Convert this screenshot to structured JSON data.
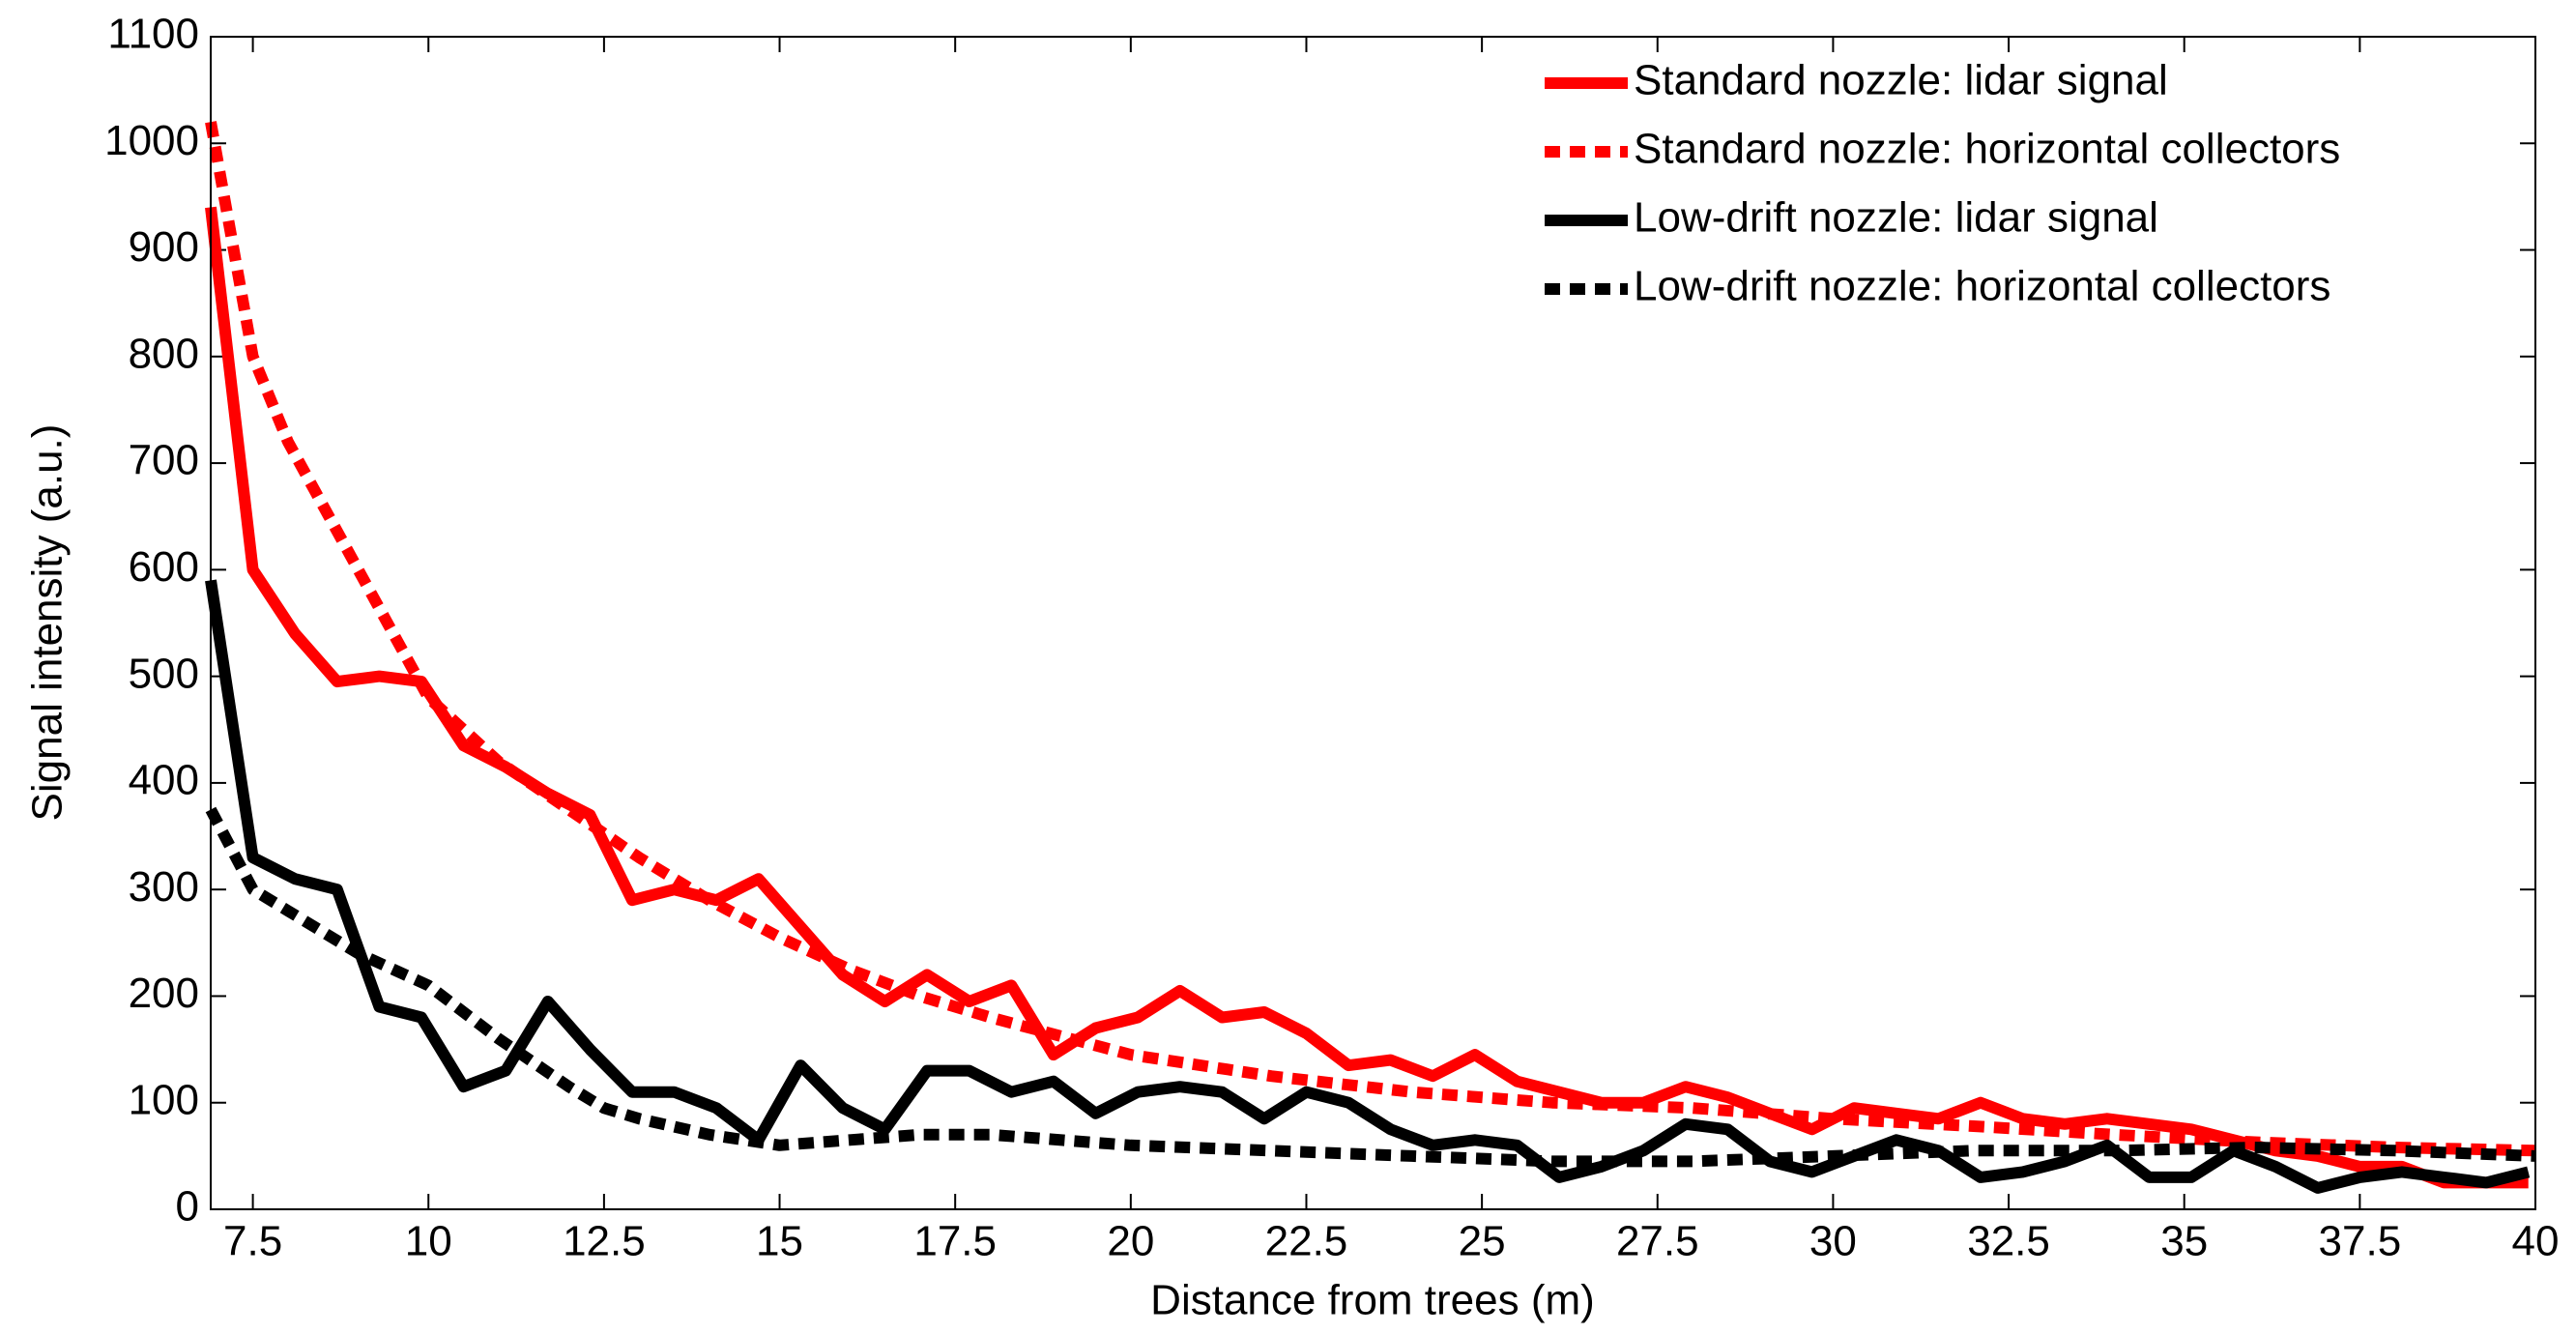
{
  "chart_data": {
    "type": "line",
    "xlabel": "Distance from trees (m)",
    "ylabel": "Signal intensity (a.u.)",
    "xlim": [
      6.9,
      40
    ],
    "ylim": [
      0,
      1100
    ],
    "xticks": [
      7.5,
      10,
      12.5,
      15,
      17.5,
      20,
      22.5,
      25,
      27.5,
      30,
      32.5,
      35,
      37.5,
      40
    ],
    "yticks": [
      0,
      100,
      200,
      300,
      400,
      500,
      600,
      700,
      800,
      900,
      1000,
      1100
    ],
    "legend": "upper right",
    "series": [
      {
        "name": "Standard nozzle: lidar signal",
        "color": "#ff0000",
        "linestyle": "solid",
        "x": [
          6.9,
          7.5,
          8.1,
          8.7,
          9.3,
          9.9,
          10.5,
          11.1,
          11.7,
          12.3,
          12.9,
          13.5,
          14.1,
          14.7,
          15.3,
          15.9,
          16.5,
          17.1,
          17.7,
          18.3,
          18.9,
          19.5,
          20.1,
          20.7,
          21.3,
          21.9,
          22.5,
          23.1,
          23.7,
          24.3,
          24.9,
          25.5,
          26.1,
          26.7,
          27.3,
          27.9,
          28.5,
          29.1,
          29.7,
          30.3,
          30.9,
          31.5,
          32.1,
          32.7,
          33.3,
          33.9,
          34.5,
          35.1,
          35.7,
          36.3,
          36.9,
          37.5,
          38.1,
          38.7,
          39.3,
          39.9
        ],
        "values": [
          940,
          600,
          540,
          495,
          500,
          495,
          435,
          415,
          390,
          370,
          290,
          300,
          290,
          310,
          265,
          220,
          195,
          220,
          195,
          210,
          145,
          170,
          180,
          205,
          180,
          185,
          165,
          135,
          140,
          125,
          145,
          120,
          110,
          100,
          100,
          115,
          105,
          90,
          75,
          95,
          90,
          85,
          100,
          85,
          80,
          85,
          80,
          75,
          65,
          55,
          50,
          40,
          40,
          25,
          25,
          25
        ]
      },
      {
        "name": "Standard nozzle: horizontal collectors",
        "color": "#ff0000",
        "linestyle": "dashed",
        "x": [
          6.9,
          7.5,
          8,
          9,
          10,
          11,
          12,
          13,
          14,
          15,
          16,
          17,
          18,
          20,
          22,
          24,
          26,
          28,
          30,
          32,
          34,
          36,
          38,
          40
        ],
        "values": [
          1020,
          800,
          720,
          600,
          480,
          420,
          375,
          330,
          290,
          255,
          225,
          200,
          180,
          145,
          125,
          110,
          100,
          95,
          85,
          78,
          70,
          63,
          58,
          55
        ]
      },
      {
        "name": "Low-drift nozzle: lidar signal",
        "color": "#000000",
        "linestyle": "solid",
        "x": [
          6.9,
          7.5,
          8.1,
          8.7,
          9.3,
          9.9,
          10.5,
          11.1,
          11.7,
          12.3,
          12.9,
          13.5,
          14.1,
          14.7,
          15.3,
          15.9,
          16.5,
          17.1,
          17.7,
          18.3,
          18.9,
          19.5,
          20.1,
          20.7,
          21.3,
          21.9,
          22.5,
          23.1,
          23.7,
          24.3,
          24.9,
          25.5,
          26.1,
          26.7,
          27.3,
          27.9,
          28.5,
          29.1,
          29.7,
          30.3,
          30.9,
          31.5,
          32.1,
          32.7,
          33.3,
          33.9,
          34.5,
          35.1,
          35.7,
          36.3,
          36.9,
          37.5,
          38.1,
          38.7,
          39.3,
          39.9
        ],
        "values": [
          590,
          330,
          310,
          300,
          190,
          180,
          115,
          130,
          195,
          150,
          110,
          110,
          95,
          65,
          135,
          95,
          75,
          130,
          130,
          110,
          120,
          90,
          110,
          115,
          110,
          85,
          110,
          100,
          75,
          60,
          65,
          60,
          30,
          40,
          55,
          80,
          75,
          45,
          35,
          50,
          65,
          55,
          30,
          35,
          45,
          60,
          30,
          30,
          55,
          40,
          20,
          30,
          35,
          30,
          25,
          35
        ]
      },
      {
        "name": "Low-drift nozzle: horizontal collectors",
        "color": "#000000",
        "linestyle": "dashed",
        "x": [
          6.9,
          7.5,
          8,
          9,
          10,
          11,
          12,
          12.5,
          13,
          14,
          15,
          16,
          17,
          18,
          20,
          22,
          24,
          26,
          28,
          30,
          32,
          34,
          36,
          38,
          40
        ],
        "values": [
          375,
          300,
          280,
          240,
          210,
          160,
          115,
          95,
          85,
          70,
          60,
          65,
          70,
          70,
          60,
          55,
          50,
          45,
          45,
          50,
          55,
          55,
          58,
          55,
          50
        ]
      }
    ]
  }
}
